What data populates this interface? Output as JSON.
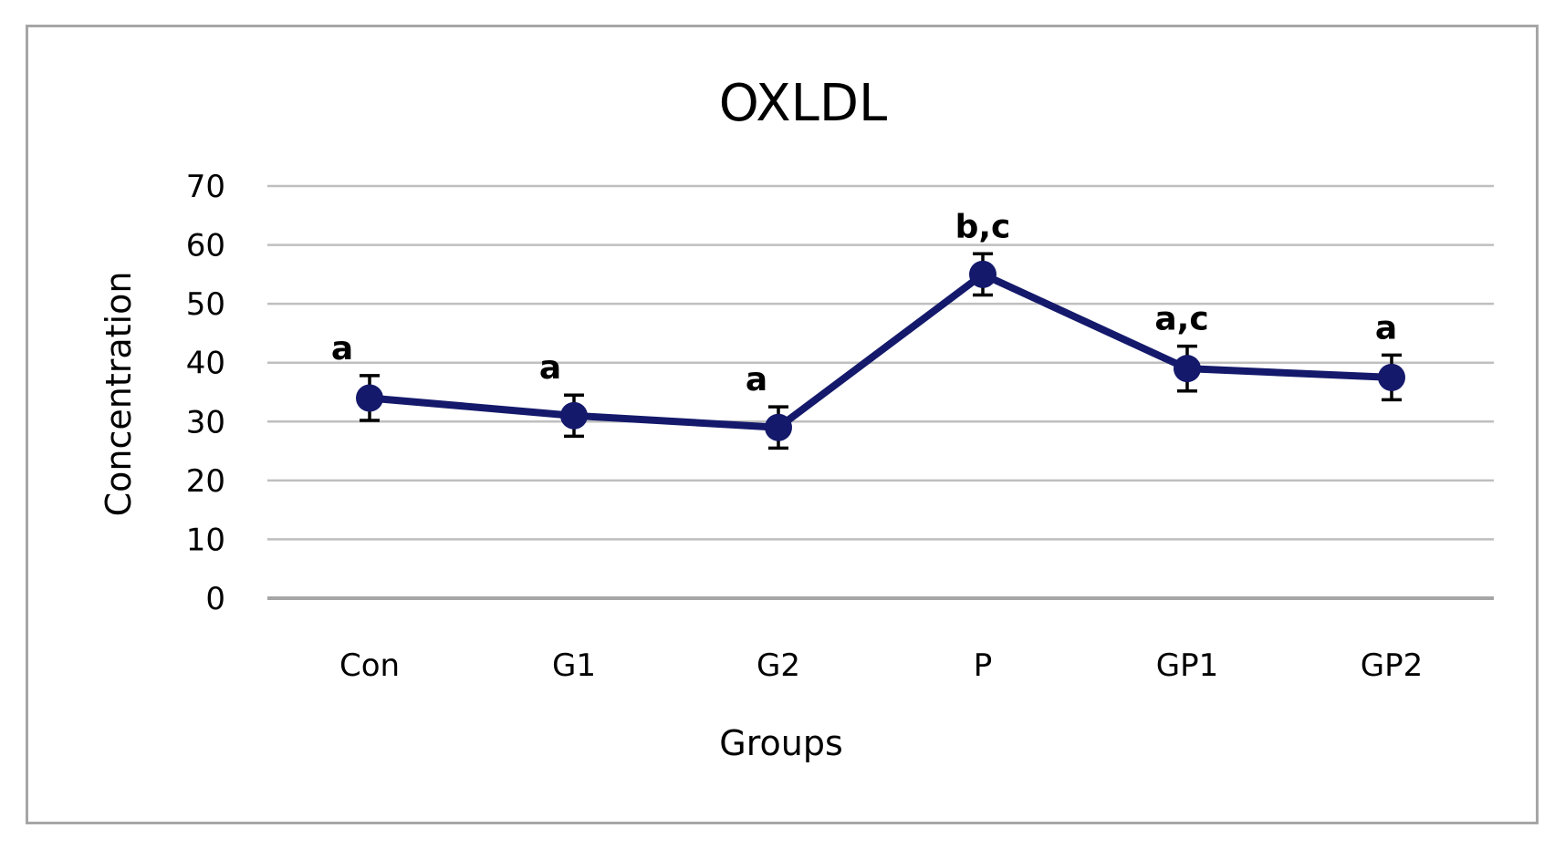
{
  "chart_data": {
    "type": "line",
    "title": "OXLDL",
    "xlabel": "Groups",
    "ylabel": "Concentration",
    "categories": [
      "Con",
      "G1",
      "G2",
      "P",
      "GP1",
      "GP2"
    ],
    "series": [
      {
        "values": [
          34,
          31,
          29,
          55,
          39,
          37.5
        ],
        "error": [
          3.8,
          3.5,
          3.5,
          3.5,
          3.8,
          3.8
        ]
      }
    ],
    "annotations": [
      "a",
      "a",
      "a",
      "b,c",
      "a,c",
      "a"
    ],
    "yticks": [
      "0",
      "10",
      "20",
      "30",
      "40",
      "50",
      "60",
      "70"
    ],
    "ylim": [
      0,
      70
    ],
    "grid": true,
    "legend": "none",
    "colors": {
      "line": "#14196b",
      "grid": "#bfbfbf",
      "axis": "#a6a6a6",
      "frame": "#a6a6a6"
    }
  }
}
